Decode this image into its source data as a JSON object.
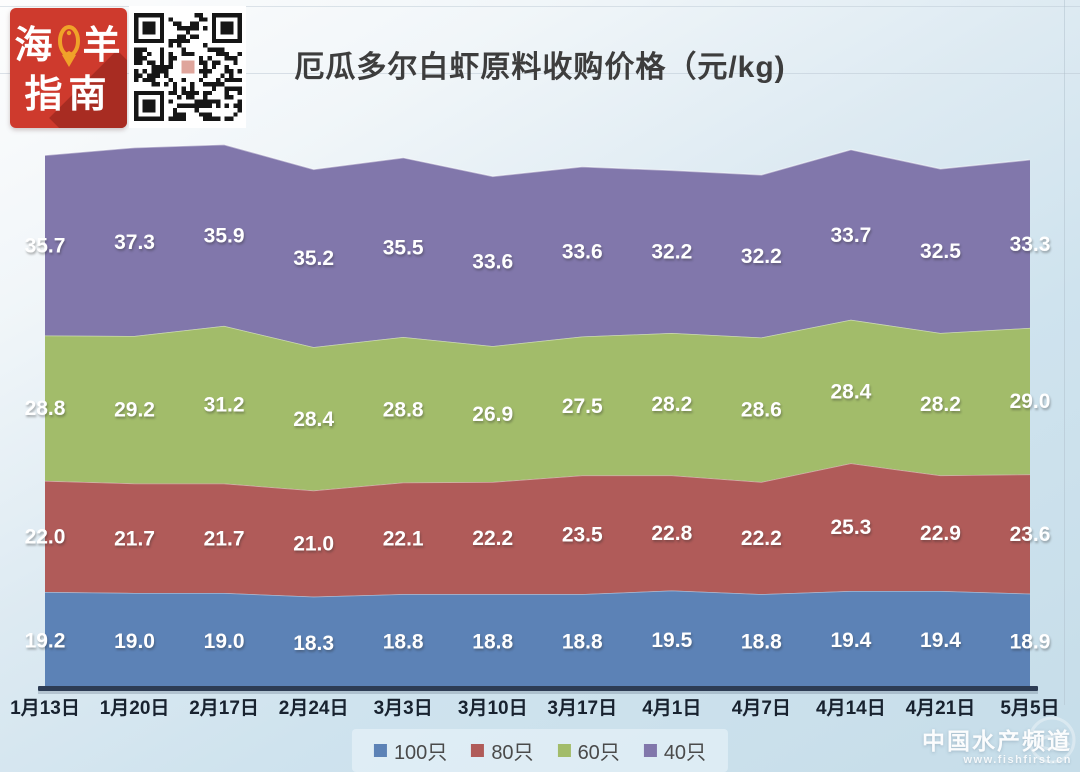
{
  "header": {
    "logo_chars": {
      "hai": "海",
      "fish_left": "鱼",
      "yang": "羊",
      "zhi": "指",
      "nan": "南"
    },
    "logo_color": "#ce3a2d",
    "fish_color": "#f0a229"
  },
  "chart_data": {
    "type": "area",
    "stacked": true,
    "title": "厄瓜多尔白虾原料收购价格（元/kg)",
    "categories": [
      "1月13日",
      "1月20日",
      "2月17日",
      "2月24日",
      "3月3日",
      "3月10日",
      "3月17日",
      "4月1日",
      "4月7日",
      "4月14日",
      "4月21日",
      "5月5日"
    ],
    "series": [
      {
        "name": "100只",
        "color": "#5c82b6",
        "values": [
          19.2,
          19.0,
          19.0,
          18.3,
          18.8,
          18.8,
          18.8,
          19.5,
          18.8,
          19.4,
          19.4,
          18.9
        ]
      },
      {
        "name": "80只",
        "color": "#b05b59",
        "values": [
          22.0,
          21.7,
          21.7,
          21.0,
          22.1,
          22.2,
          23.5,
          22.8,
          22.2,
          25.3,
          22.9,
          23.6
        ]
      },
      {
        "name": "60只",
        "color": "#a2bc6a",
        "values": [
          28.8,
          29.2,
          31.2,
          28.4,
          28.8,
          26.9,
          27.5,
          28.2,
          28.6,
          28.4,
          28.2,
          29.0
        ]
      },
      {
        "name": "40只",
        "color": "#8177ab",
        "values": [
          35.7,
          37.3,
          35.9,
          35.2,
          35.5,
          33.6,
          33.6,
          32.2,
          32.2,
          33.7,
          32.5,
          33.3
        ]
      }
    ],
    "ylim": [
      0,
      110
    ],
    "grid": false,
    "legend_position": "bottom",
    "data_labels": true,
    "axis_line_color": "#2d3c54"
  },
  "watermark": {
    "name": "中国水产频道",
    "url": "www.fishfirst.cn"
  }
}
